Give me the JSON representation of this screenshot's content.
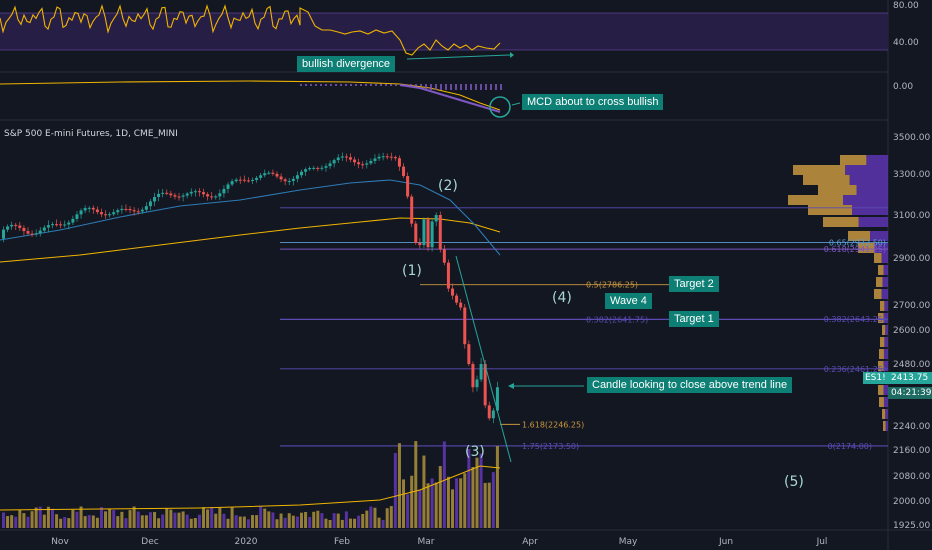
{
  "chart_data": {
    "type": "candlestick",
    "title": "S&P 500 E-mini Futures, 1D, CME_MINI",
    "x_tick_labels": [
      "Nov",
      "Dec",
      "2020",
      "Feb",
      "Mar",
      "Apr",
      "May",
      "Jun",
      "Jul"
    ],
    "y_tick_labels": [
      "3500.00",
      "3300.00",
      "3100.00",
      "2900.00",
      "2700.00",
      "2600.00",
      "2480.00",
      "2240.00",
      "2160.00",
      "2080.00",
      "2000.00",
      "1925.00"
    ],
    "ylim": [
      1925,
      3520
    ],
    "last_price": "2413.75",
    "countdown": "04:21:39",
    "ticker": "ES1!",
    "rsi": {
      "tick_labels": [
        "80.00",
        "40.00"
      ],
      "trend": "falling price, rising RSI lows"
    },
    "macd": {
      "tick_labels": [
        "0.00"
      ]
    },
    "fib_levels": [
      {
        "label": "0.65(2972.50)",
        "value": 2972.5
      },
      {
        "label": "0.618(2941.25)",
        "value": 2941.25
      },
      {
        "label": "0.5(2786.25)",
        "value": 2786.25
      },
      {
        "label": "0.382(2641.75)",
        "value": 2641.75
      },
      {
        "label": "0.382(2643.25)",
        "value": 2643.25
      },
      {
        "label": "0.236(2461.25)",
        "value": 2461.25
      },
      {
        "label": "1.618(2246.25)",
        "value": 2246.25
      },
      {
        "label": "1.75(2173.50)",
        "value": 2173.5
      },
      {
        "label": "0(2174.00)",
        "value": 2174.0
      }
    ],
    "moving_averages": [
      "50-day (blue)",
      "200-day (orange)"
    ],
    "volume_profile": "right-side histogram, heaviest near 3100-3300",
    "annotations": [
      "bullish divergence",
      "MCD about to cross bullish",
      "Target 2",
      "Wave 4",
      "Target 1",
      "Candle looking to close above trend line"
    ],
    "waves": [
      "(1)",
      "(2)",
      "(3)",
      "(4)",
      "(5)"
    ]
  },
  "colors": {
    "background": "#131722",
    "up": "#26a69a",
    "down": "#ef5350",
    "rsi_line": "#f0b400",
    "rsi_band": "#2a1f4a",
    "macd_line": "#f0b400",
    "signal_line": "#8e44ad",
    "annotation_bg": "#0d7f75",
    "fib_gold": "#c8963e",
    "fib_purple": "#5c4bb5",
    "ma50": "#2f7bb5",
    "ma200": "#f0b400"
  }
}
